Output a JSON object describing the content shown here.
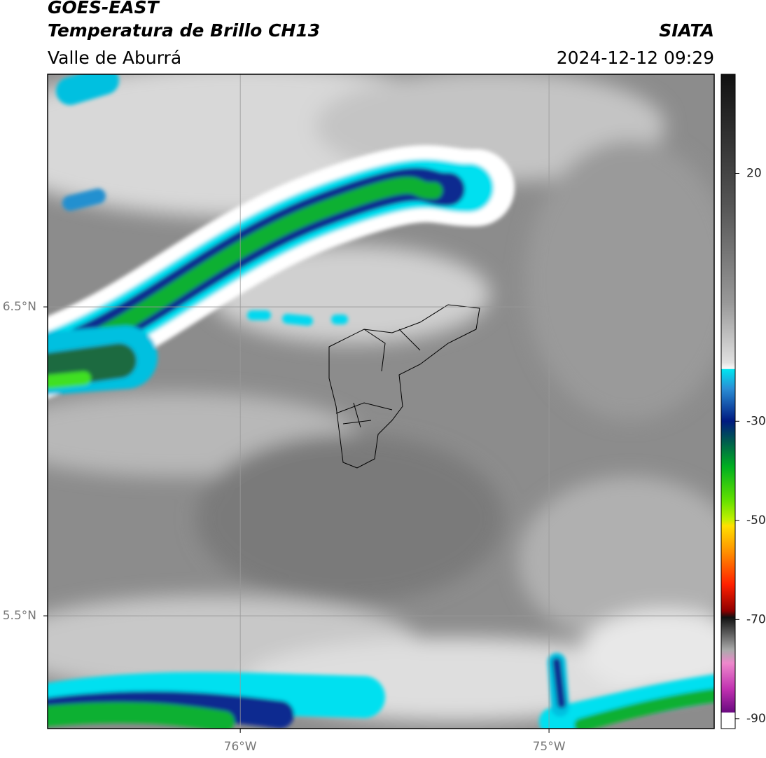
{
  "header": {
    "title": "GOES-EAST",
    "subtitle": "Temperatura de Brillo CH13",
    "region": "Valle de Aburrá",
    "source": "SIATA",
    "timestamp": "2024-12-12 09:29"
  },
  "map": {
    "xlim": [
      -76.624,
      -74.465
    ],
    "ylim": [
      5.135,
      7.253
    ],
    "xticks": [
      {
        "value": -76,
        "label": "76°W"
      },
      {
        "value": -75,
        "label": "75°W"
      }
    ],
    "yticks": [
      {
        "value": 6.5,
        "label": "6.5°N"
      },
      {
        "value": 5.5,
        "label": "5.5°N"
      }
    ],
    "grid": true
  },
  "colorbar": {
    "lim": [
      -92,
      40
    ],
    "ticks": [
      20,
      -30,
      -50,
      -70,
      -90
    ]
  }
}
